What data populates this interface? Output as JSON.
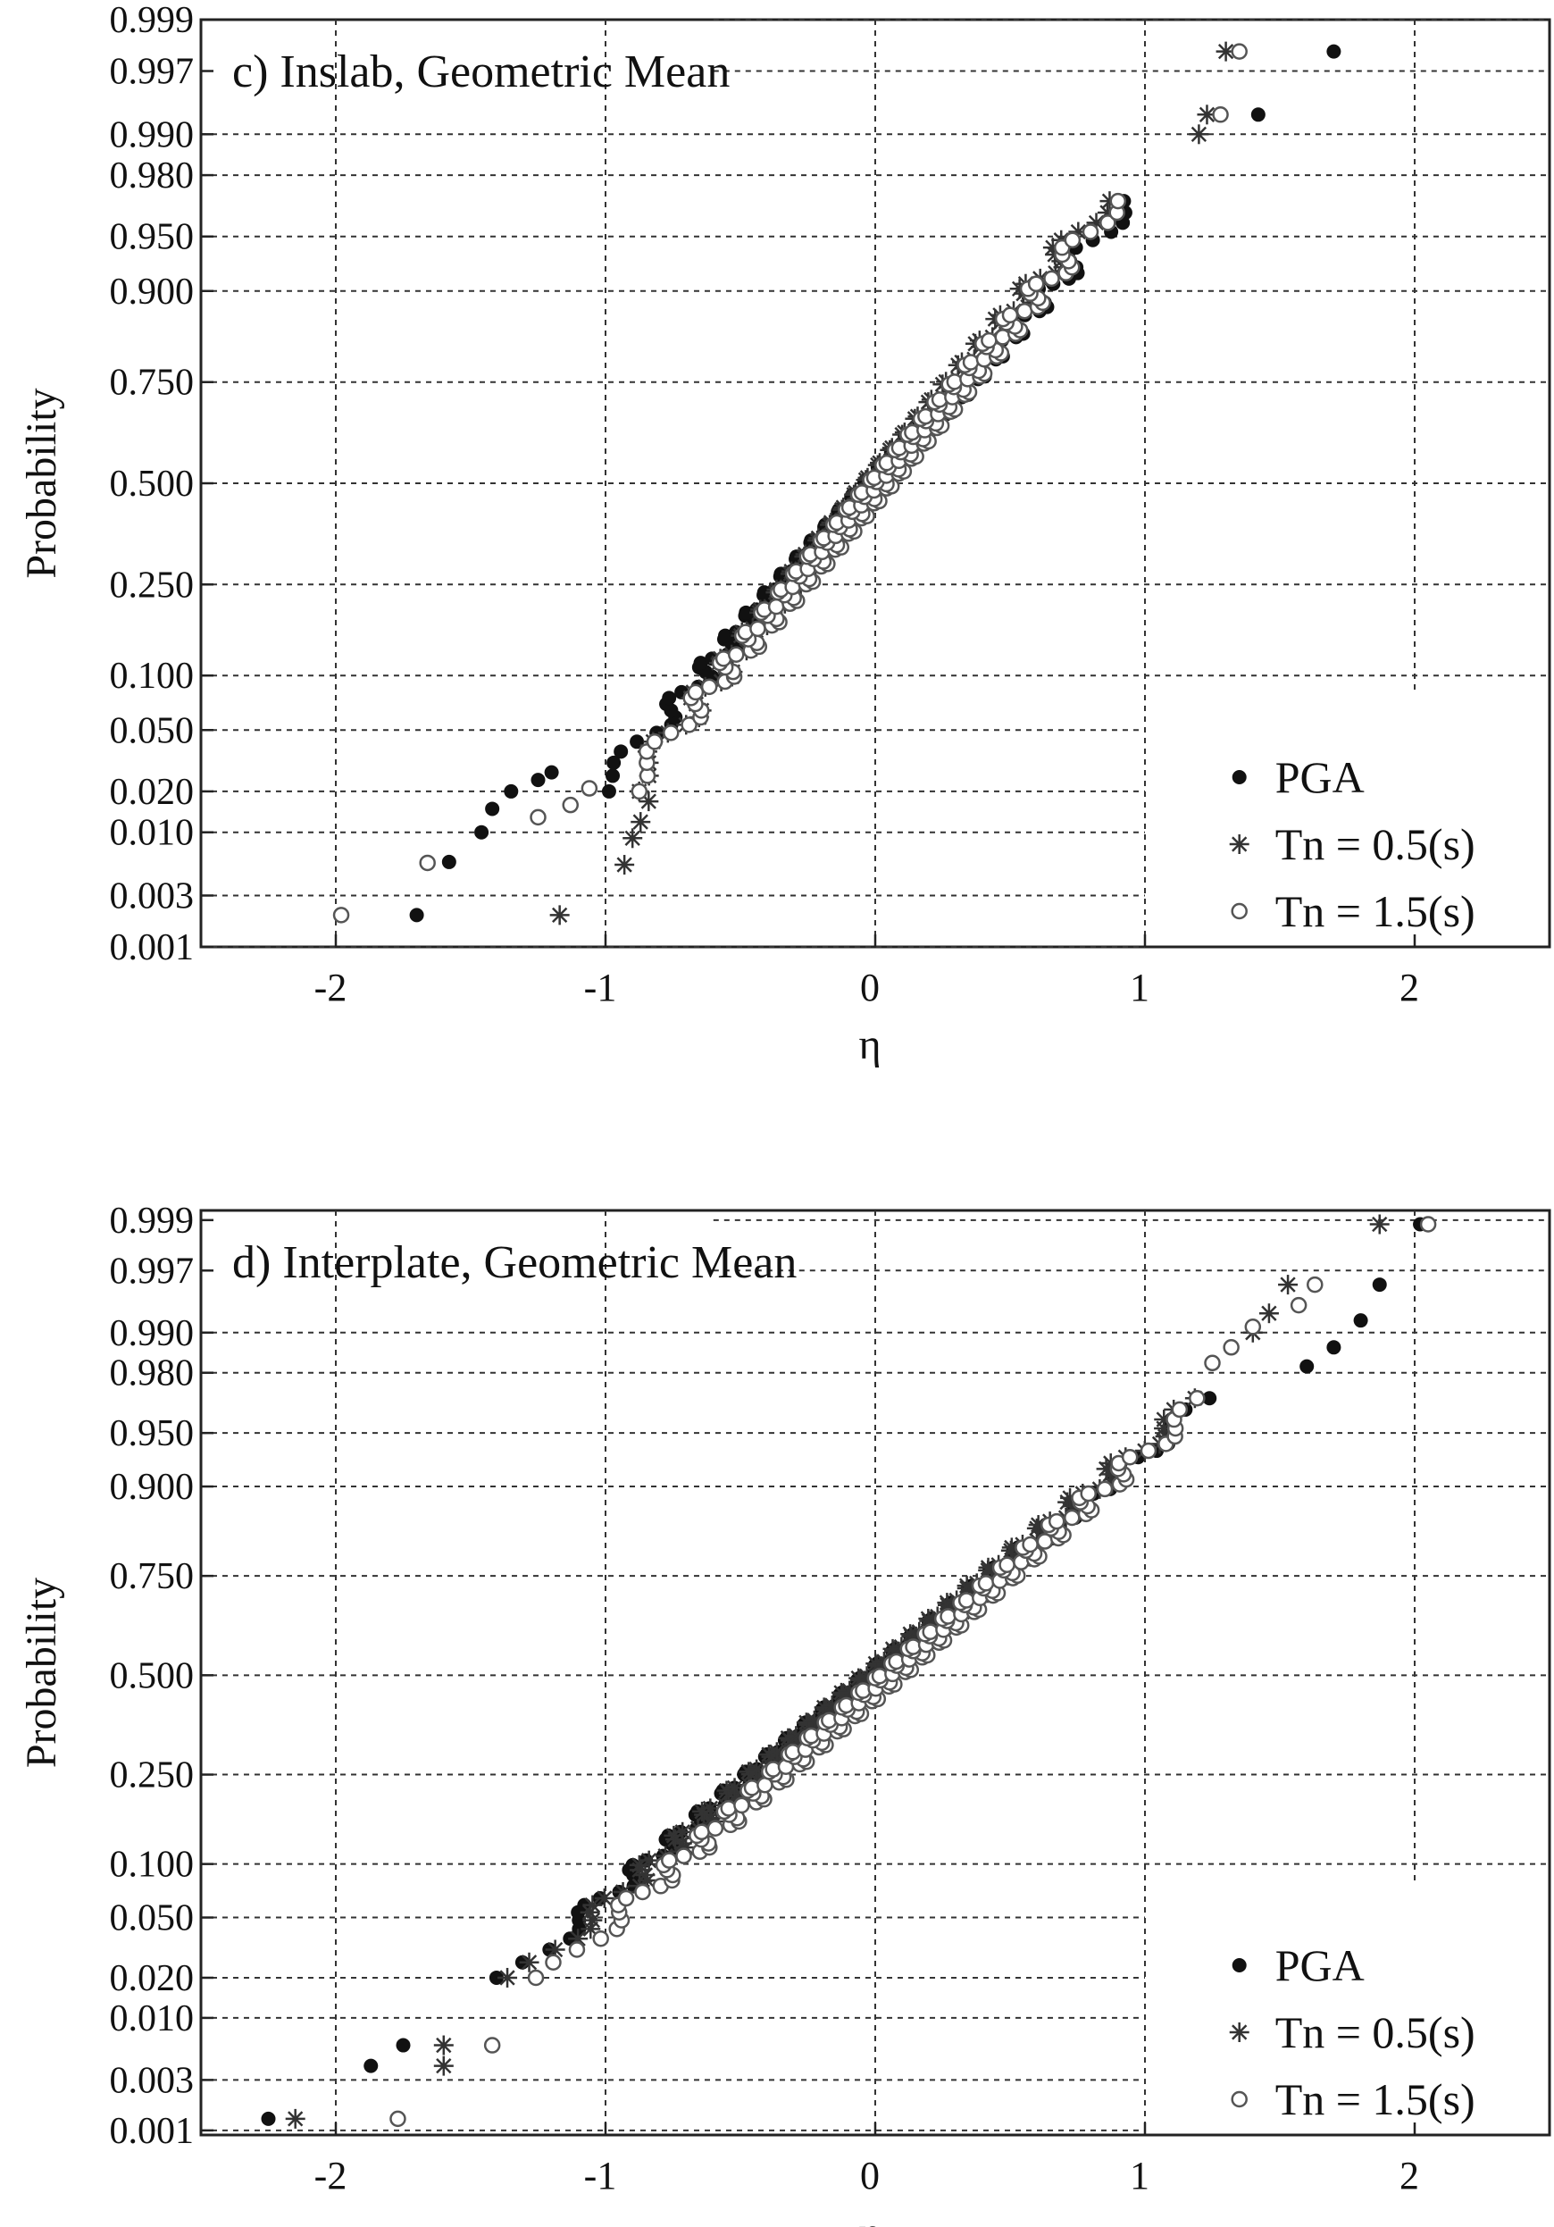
{
  "chart_data": [
    {
      "type": "scatter",
      "scale": "normal-probability",
      "title": "c) Inslab, Geometric Mean",
      "xlabel": "η",
      "ylabel": "Probability",
      "xlim": [
        -2.5,
        2.5
      ],
      "xticks": [
        "-2",
        "-1",
        "0",
        "1",
        "2"
      ],
      "yticks": [
        "0.001",
        "0.003",
        "0.010",
        "0.020",
        "0.050",
        "0.100",
        "0.250",
        "0.500",
        "0.750",
        "0.900",
        "0.950",
        "0.980",
        "0.990",
        "0.997",
        "0.999"
      ],
      "grid": true,
      "legend_position": "bottom-right",
      "series": [
        {
          "name": "PGA",
          "marker": "filled-circle",
          "color": "#111111",
          "mean": 0.0,
          "std": 0.5,
          "extremes": [
            [
              -1.7,
              0.002
            ],
            [
              -1.58,
              0.0058
            ],
            [
              -1.46,
              0.01
            ],
            [
              -1.42,
              0.015
            ],
            [
              -1.35,
              0.02
            ],
            [
              -1.25,
              0.024
            ],
            [
              -1.2,
              0.027
            ],
            [
              1.42,
              0.993
            ],
            [
              1.7,
              0.998
            ]
          ]
        },
        {
          "name": "Tn = 0.5(s)",
          "marker": "star",
          "color": "#333333",
          "mean": 0.0,
          "std": 0.45,
          "extremes": [
            [
              -1.17,
              0.002
            ],
            [
              -0.93,
              0.0055
            ],
            [
              -0.9,
              0.009
            ],
            [
              -0.87,
              0.012
            ],
            [
              -0.84,
              0.017
            ],
            [
              1.2,
              0.99
            ],
            [
              1.23,
              0.993
            ],
            [
              1.3,
              0.998
            ]
          ]
        },
        {
          "name": "Tn = 1.5(s)",
          "marker": "open-circle",
          "color": "#555555",
          "mean": 0.02,
          "std": 0.46,
          "extremes": [
            [
              -1.98,
              0.002
            ],
            [
              -1.66,
              0.0057
            ],
            [
              -1.25,
              0.013
            ],
            [
              -1.13,
              0.016
            ],
            [
              -1.06,
              0.021
            ],
            [
              1.28,
              0.993
            ],
            [
              1.35,
              0.998
            ]
          ]
        }
      ]
    },
    {
      "type": "scatter",
      "scale": "normal-probability",
      "title": "d) Interplate, Geometric Mean",
      "xlabel": "η",
      "ylabel": "Probability",
      "xlim": [
        -2.5,
        2.5
      ],
      "xticks": [
        "-2",
        "-1",
        "0",
        "1",
        "2"
      ],
      "yticks": [
        "0.001",
        "0.003",
        "0.010",
        "0.020",
        "0.050",
        "0.100",
        "0.250",
        "0.500",
        "0.750",
        "0.900",
        "0.950",
        "0.980",
        "0.990",
        "0.997",
        "0.999"
      ],
      "grid": true,
      "legend_position": "bottom-right",
      "series": [
        {
          "name": "PGA",
          "marker": "filled-circle",
          "color": "#111111",
          "mean": 0.0,
          "std": 0.66,
          "extremes": [
            [
              -2.25,
              0.0013
            ],
            [
              -1.87,
              0.004
            ],
            [
              -1.75,
              0.006
            ],
            [
              1.6,
              0.982
            ],
            [
              1.7,
              0.987
            ],
            [
              1.8,
              0.992
            ],
            [
              1.87,
              0.996
            ],
            [
              2.02,
              0.9989
            ]
          ]
        },
        {
          "name": "Tn = 0.5(s)",
          "marker": "star",
          "color": "#333333",
          "mean": 0.0,
          "std": 0.64,
          "extremes": [
            [
              -2.15,
              0.0013
            ],
            [
              -1.6,
              0.004
            ],
            [
              -1.6,
              0.006
            ],
            [
              1.4,
              0.99
            ],
            [
              1.46,
              0.993
            ],
            [
              1.53,
              0.996
            ],
            [
              1.87,
              0.9989
            ]
          ]
        },
        {
          "name": "Tn = 1.5(s)",
          "marker": "open-circle",
          "color": "#555555",
          "mean": 0.06,
          "std": 0.62,
          "extremes": [
            [
              -1.77,
              0.0013
            ],
            [
              -1.42,
              0.006
            ],
            [
              1.25,
              0.983
            ],
            [
              1.32,
              0.987
            ],
            [
              1.4,
              0.991
            ],
            [
              1.57,
              0.994
            ],
            [
              1.63,
              0.996
            ],
            [
              2.05,
              0.9989
            ]
          ]
        }
      ]
    }
  ]
}
